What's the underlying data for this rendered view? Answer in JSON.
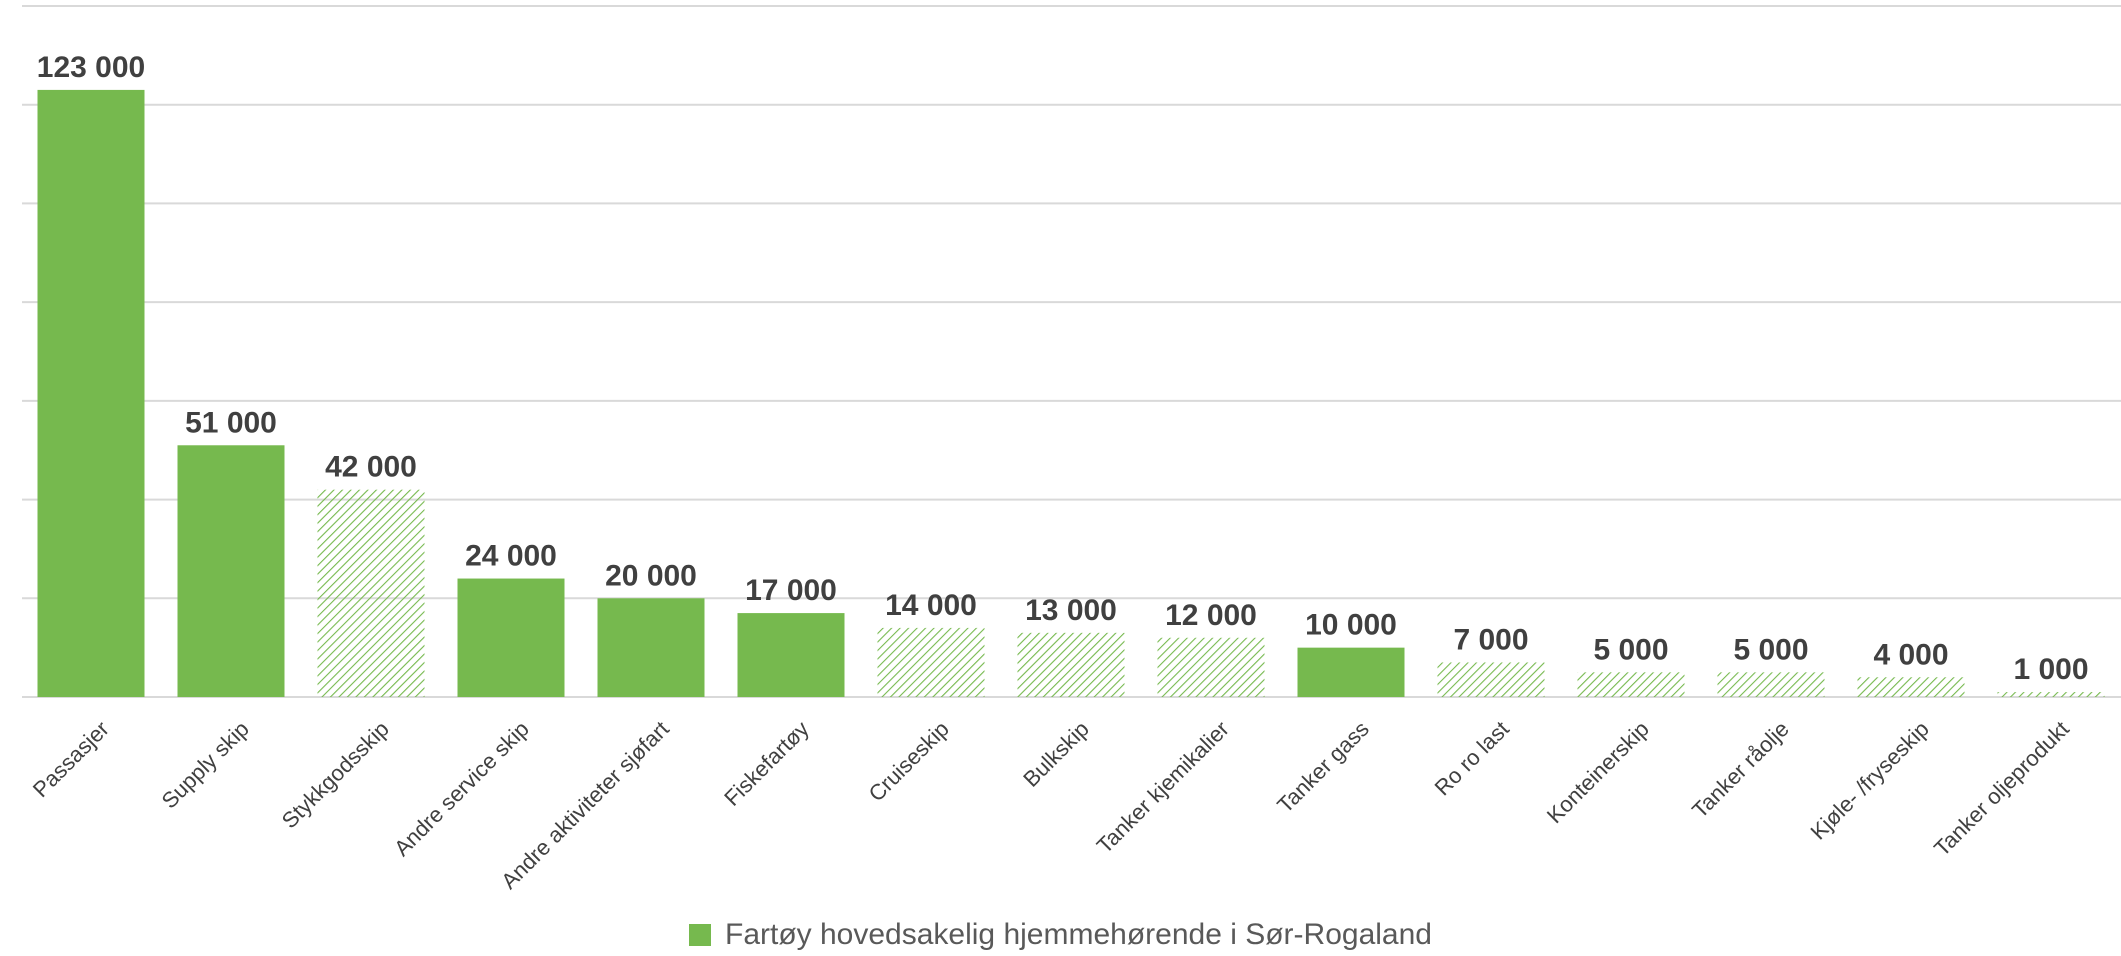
{
  "chart_data": {
    "type": "bar",
    "categories": [
      "Passasjer",
      "Supply skip",
      "Stykkgodsskip",
      "Andre service skip",
      "Andre aktiviteter sjøfart",
      "Fiskefartøy",
      "Cruiseskip",
      "Bulkskip",
      "Tanker kjemikalier",
      "Tanker gass",
      "Ro ro last",
      "Konteinerskip",
      "Tanker råolje",
      "Kjøle- /fryseskip",
      "Tanker oljeprodukt"
    ],
    "values": [
      123000,
      51000,
      42000,
      24000,
      20000,
      17000,
      14000,
      13000,
      12000,
      10000,
      7000,
      5000,
      5000,
      4000,
      1000
    ],
    "value_labels": [
      "123 000",
      "51 000",
      "42 000",
      "24 000",
      "20 000",
      "17 000",
      "14 000",
      "13 000",
      "12 000",
      "10 000",
      "7 000",
      "5 000",
      "5 000",
      "4 000",
      "1 000"
    ],
    "home_region": [
      true,
      true,
      false,
      true,
      true,
      true,
      false,
      false,
      false,
      true,
      false,
      false,
      false,
      false,
      false
    ],
    "ylim": [
      0,
      140000
    ],
    "grid": true,
    "legend": {
      "position": "bottom",
      "entries": [
        "Fartøy hovedsakelig hjemmehørende i Sør-Rogaland"
      ]
    },
    "colors": {
      "bar": "#76b94e",
      "grid": "#d9d9d9",
      "text": "#404040"
    }
  }
}
